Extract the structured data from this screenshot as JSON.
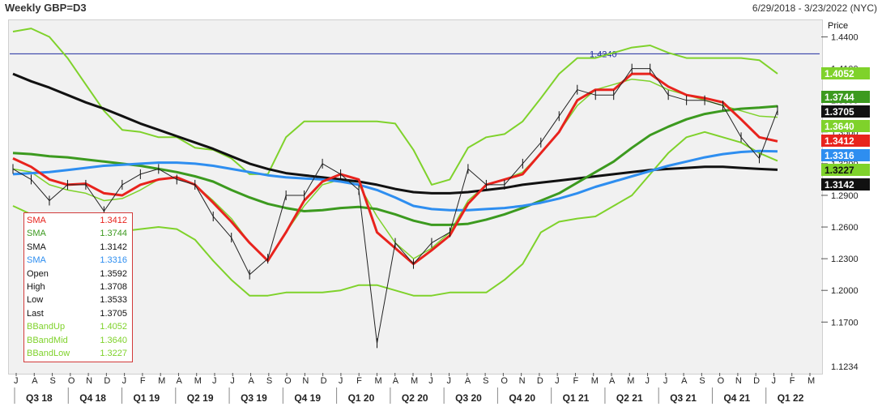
{
  "header": {
    "title": "Weekly GBP=D3",
    "date_range": "6/29/2018 - 3/23/2022 (NYC)"
  },
  "price_axis": {
    "title": "Price",
    "ticks": [
      "1.4400",
      "1.4100",
      "1.3800",
      "1.3500",
      "1.3200",
      "1.2900",
      "1.2600",
      "1.2300",
      "1.2000",
      "1.1700"
    ],
    "bottom_label": "1.1234"
  },
  "colors": {
    "sma_red": "#e8231d",
    "sma_green": "#3c9a1f",
    "sma_black": "#111111",
    "sma_blue": "#2e8ef0",
    "bband": "#7fd22b",
    "resistance": "#1f2ca0",
    "background": "#f1f1f1"
  },
  "price_tags": [
    {
      "value": "1.4052",
      "color": "#7fd22b",
      "text_color": "#ffffff"
    },
    {
      "value": "1.3744",
      "color": "#3c9a1f",
      "text_color": "#ffffff"
    },
    {
      "value": "1.3705",
      "color": "#111111",
      "text_color": "#ffffff"
    },
    {
      "value": "1.3640",
      "color": "#7fd22b",
      "text_color": "#ffffff"
    },
    {
      "value": "1.3412",
      "color": "#e8231d",
      "text_color": "#ffffff"
    },
    {
      "value": "1.3316",
      "color": "#2e8ef0",
      "text_color": "#ffffff"
    },
    {
      "value": "1.3227",
      "color": "#7fd22b",
      "text_color": "#111111"
    },
    {
      "value": "1.3142",
      "color": "#111111",
      "text_color": "#ffffff"
    }
  ],
  "legend": [
    {
      "label": "SMA",
      "value": "1.3412",
      "color": "#e8231d"
    },
    {
      "label": "SMA",
      "value": "1.3744",
      "color": "#3c9a1f"
    },
    {
      "label": "SMA",
      "value": "1.3142",
      "color": "#111111"
    },
    {
      "label": "SMA",
      "value": "1.3316",
      "color": "#2e8ef0"
    },
    {
      "label": "Open",
      "value": "1.3592",
      "color": "#111111"
    },
    {
      "label": "High",
      "value": "1.3708",
      "color": "#111111"
    },
    {
      "label": "Low",
      "value": "1.3533",
      "color": "#111111"
    },
    {
      "label": "Last",
      "value": "1.3705",
      "color": "#111111"
    },
    {
      "label": "BBandUp",
      "value": "1.4052",
      "color": "#7fd22b"
    },
    {
      "label": "BBandMid",
      "value": "1.3640",
      "color": "#7fd22b"
    },
    {
      "label": "BBandLow",
      "value": "1.3227",
      "color": "#7fd22b"
    }
  ],
  "x_axis": {
    "months": [
      "J",
      "A",
      "S",
      "O",
      "N",
      "D",
      "J",
      "F",
      "M",
      "A",
      "M",
      "J",
      "J",
      "A",
      "S",
      "O",
      "N",
      "D",
      "J",
      "F",
      "M",
      "A",
      "M",
      "J",
      "J",
      "A",
      "S",
      "O",
      "N",
      "D",
      "J",
      "F",
      "M",
      "A",
      "M",
      "J",
      "J",
      "A",
      "S",
      "O",
      "N",
      "D",
      "J",
      "F",
      "M"
    ],
    "quarters": [
      "Q3 18",
      "Q4 18",
      "Q1 19",
      "Q2 19",
      "Q3 19",
      "Q4 19",
      "Q1 20",
      "Q2 20",
      "Q3 20",
      "Q4 20",
      "Q1 21",
      "Q2 21",
      "Q3 21",
      "Q4 21",
      "Q1 22"
    ]
  },
  "chart_data": {
    "type": "line",
    "title": "Weekly GBP=D3",
    "ylabel": "Price",
    "ylim": [
      1.1234,
      1.455
    ],
    "x_range": [
      "2018-06-29",
      "2022-03-23"
    ],
    "annotations": [
      {
        "label": "1.4240",
        "y": 1.424,
        "type": "horizontal-line"
      }
    ],
    "x": [
      "2018-07",
      "2018-08",
      "2018-09",
      "2018-10",
      "2018-11",
      "2018-12",
      "2019-01",
      "2019-02",
      "2019-03",
      "2019-04",
      "2019-05",
      "2019-06",
      "2019-07",
      "2019-08",
      "2019-09",
      "2019-10",
      "2019-11",
      "2019-12",
      "2020-01",
      "2020-02",
      "2020-03",
      "2020-04",
      "2020-05",
      "2020-06",
      "2020-07",
      "2020-08",
      "2020-09",
      "2020-10",
      "2020-11",
      "2020-12",
      "2021-01",
      "2021-02",
      "2021-03",
      "2021-04",
      "2021-05",
      "2021-06",
      "2021-07",
      "2021-08",
      "2021-09",
      "2021-10",
      "2021-11",
      "2021-12",
      "2022-01"
    ],
    "series": [
      {
        "name": "Price",
        "values": [
          1.315,
          1.305,
          1.285,
          1.3,
          1.3,
          1.275,
          1.3,
          1.31,
          1.315,
          1.305,
          1.3,
          1.27,
          1.25,
          1.215,
          1.23,
          1.29,
          1.29,
          1.32,
          1.31,
          1.295,
          1.15,
          1.245,
          1.225,
          1.245,
          1.255,
          1.315,
          1.3,
          1.3,
          1.32,
          1.34,
          1.365,
          1.39,
          1.385,
          1.385,
          1.41,
          1.41,
          1.385,
          1.38,
          1.38,
          1.375,
          1.345,
          1.325,
          1.3705
        ]
      },
      {
        "name": "SMA",
        "values": [
          1.325,
          1.317,
          1.305,
          1.3,
          1.301,
          1.292,
          1.29,
          1.3,
          1.305,
          1.307,
          1.3,
          1.283,
          1.265,
          1.245,
          1.228,
          1.255,
          1.285,
          1.303,
          1.31,
          1.305,
          1.255,
          1.24,
          1.225,
          1.238,
          1.252,
          1.282,
          1.3,
          1.305,
          1.31,
          1.33,
          1.35,
          1.38,
          1.39,
          1.39,
          1.405,
          1.405,
          1.393,
          1.385,
          1.382,
          1.378,
          1.362,
          1.345,
          1.3412
        ]
      },
      {
        "name": "SMA",
        "values": [
          1.33,
          1.329,
          1.327,
          1.326,
          1.324,
          1.322,
          1.32,
          1.318,
          1.315,
          1.312,
          1.308,
          1.303,
          1.295,
          1.288,
          1.282,
          1.278,
          1.275,
          1.276,
          1.278,
          1.279,
          1.277,
          1.272,
          1.266,
          1.262,
          1.262,
          1.263,
          1.267,
          1.272,
          1.278,
          1.285,
          1.292,
          1.302,
          1.312,
          1.322,
          1.335,
          1.347,
          1.355,
          1.362,
          1.367,
          1.37,
          1.372,
          1.373,
          1.3744
        ]
      },
      {
        "name": "SMA",
        "values": [
          1.405,
          1.398,
          1.392,
          1.385,
          1.378,
          1.372,
          1.365,
          1.358,
          1.352,
          1.346,
          1.34,
          1.334,
          1.327,
          1.32,
          1.315,
          1.311,
          1.309,
          1.307,
          1.305,
          1.303,
          1.3,
          1.296,
          1.293,
          1.292,
          1.292,
          1.293,
          1.295,
          1.297,
          1.3,
          1.302,
          1.304,
          1.306,
          1.308,
          1.31,
          1.312,
          1.314,
          1.315,
          1.316,
          1.317,
          1.317,
          1.316,
          1.315,
          1.3142
        ]
      },
      {
        "name": "SMA",
        "values": [
          1.31,
          1.311,
          1.312,
          1.314,
          1.316,
          1.318,
          1.319,
          1.32,
          1.321,
          1.321,
          1.32,
          1.318,
          1.315,
          1.312,
          1.309,
          1.307,
          1.306,
          1.305,
          1.303,
          1.3,
          1.295,
          1.288,
          1.28,
          1.277,
          1.276,
          1.276,
          1.277,
          1.278,
          1.28,
          1.283,
          1.287,
          1.292,
          1.298,
          1.303,
          1.308,
          1.313,
          1.318,
          1.322,
          1.326,
          1.329,
          1.331,
          1.332,
          1.3316
        ]
      },
      {
        "name": "BBandUp",
        "values": [
          1.445,
          1.448,
          1.44,
          1.42,
          1.395,
          1.37,
          1.352,
          1.35,
          1.345,
          1.345,
          1.335,
          1.333,
          1.325,
          1.31,
          1.31,
          1.345,
          1.36,
          1.36,
          1.36,
          1.36,
          1.36,
          1.358,
          1.333,
          1.3,
          1.305,
          1.335,
          1.345,
          1.348,
          1.36,
          1.382,
          1.405,
          1.42,
          1.42,
          1.425,
          1.43,
          1.432,
          1.425,
          1.42,
          1.42,
          1.42,
          1.42,
          1.418,
          1.4052
        ]
      },
      {
        "name": "BBandMid",
        "values": [
          1.315,
          1.312,
          1.3,
          1.295,
          1.292,
          1.285,
          1.287,
          1.295,
          1.305,
          1.307,
          1.3,
          1.285,
          1.268,
          1.245,
          1.228,
          1.255,
          1.28,
          1.3,
          1.305,
          1.3,
          1.27,
          1.245,
          1.23,
          1.24,
          1.255,
          1.285,
          1.3,
          1.305,
          1.312,
          1.33,
          1.35,
          1.375,
          1.39,
          1.395,
          1.4,
          1.398,
          1.39,
          1.385,
          1.38,
          1.375,
          1.37,
          1.365,
          1.364
        ]
      },
      {
        "name": "BBandLow",
        "values": [
          1.28,
          1.272,
          1.262,
          1.26,
          1.258,
          1.255,
          1.256,
          1.258,
          1.26,
          1.258,
          1.248,
          1.228,
          1.21,
          1.195,
          1.195,
          1.198,
          1.198,
          1.198,
          1.2,
          1.205,
          1.205,
          1.2,
          1.195,
          1.195,
          1.198,
          1.198,
          1.198,
          1.21,
          1.225,
          1.255,
          1.265,
          1.268,
          1.27,
          1.28,
          1.29,
          1.31,
          1.33,
          1.345,
          1.35,
          1.345,
          1.34,
          1.33,
          1.3227
        ]
      }
    ]
  }
}
